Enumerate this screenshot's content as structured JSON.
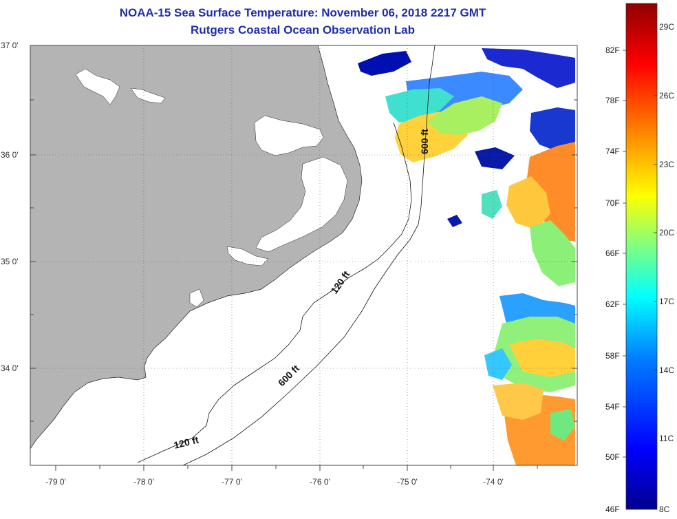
{
  "title": "NOAA-15 Sea Surface Temperature:  November 06, 2018 2217 GMT",
  "subtitle": "Rutgers Coastal Ocean Observation Lab",
  "lat_labels": [
    "37 0'",
    "36 0'",
    "35 0'",
    "34 0'"
  ],
  "lon_labels": [
    "-79 0'",
    "-78 0'",
    "-77 0'",
    "-76 0'",
    "-75 0'",
    "-74 0'"
  ],
  "contours": {
    "shelf_120_upper": "120 ft",
    "shelf_120_lower": "120 ft",
    "slope_600_north": "600 ft",
    "slope_600_south": "600 ft"
  },
  "colorbar": {
    "fahrenheit": [
      "82F",
      "78F",
      "74F",
      "70F",
      "66F",
      "62F",
      "58F",
      "54F",
      "50F",
      "46F"
    ],
    "celsius": [
      "29C",
      "26C",
      "23C",
      "20C",
      "17C",
      "14C",
      "11C",
      "8C"
    ],
    "min_f": 46,
    "max_f": 84,
    "colors": [
      "#00008f",
      "#0000ff",
      "#0080ff",
      "#00ffff",
      "#80ff80",
      "#ffff00",
      "#ff8000",
      "#ff0000",
      "#8f0000"
    ]
  },
  "colors": {
    "land": "#b4b4b4",
    "title": "#1f2ea8",
    "ocean": "#ffffff"
  }
}
